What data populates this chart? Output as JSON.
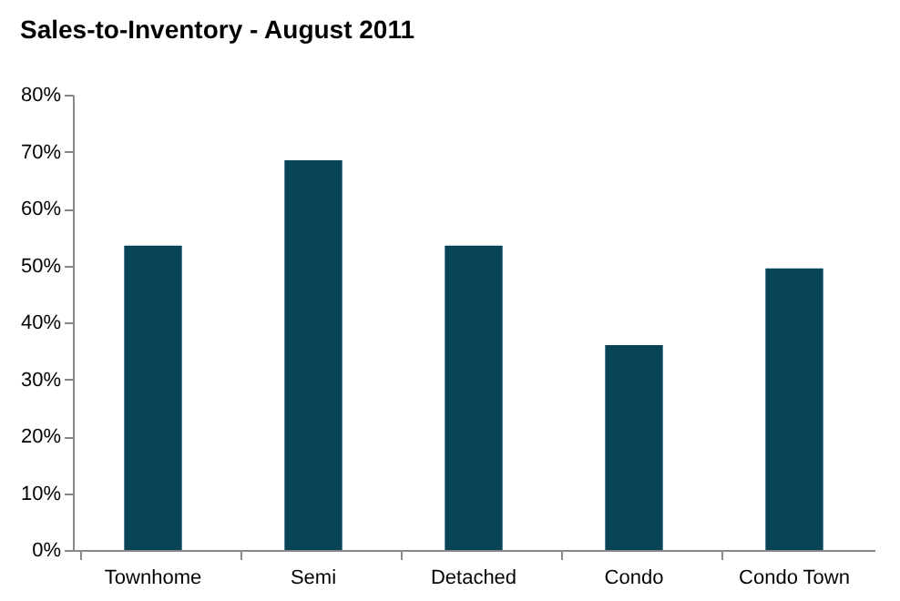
{
  "chart_data": {
    "type": "bar",
    "title": "Sales-to-Inventory - August 2011",
    "categories": [
      "Townhome",
      "Semi",
      "Detached",
      "Condo",
      "Condo Town"
    ],
    "values": [
      53.5,
      68.5,
      53.5,
      36,
      49.5
    ],
    "color": "#084357",
    "ylim": [
      0,
      80
    ],
    "yticks": [
      {
        "value": 0,
        "label": "0%"
      },
      {
        "value": 10,
        "label": "10%"
      },
      {
        "value": 20,
        "label": "20%"
      },
      {
        "value": 30,
        "label": "30%"
      },
      {
        "value": 40,
        "label": "40%"
      },
      {
        "value": 50,
        "label": "50%"
      },
      {
        "value": 60,
        "label": "60%"
      },
      {
        "value": 70,
        "label": "70%"
      },
      {
        "value": 80,
        "label": "80%"
      }
    ],
    "grid": false
  }
}
